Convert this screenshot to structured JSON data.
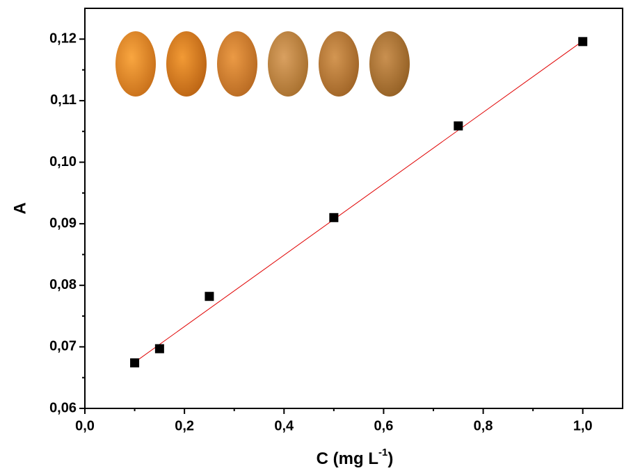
{
  "chart_data": {
    "type": "scatter",
    "xlabel": {
      "text": "C (mg L",
      "superscript": "-1",
      "suffix": ")"
    },
    "ylabel": "A",
    "x": [
      0.1,
      0.15,
      0.25,
      0.5,
      0.75,
      1.0
    ],
    "values": [
      0.0674,
      0.0697,
      0.0782,
      0.091,
      0.1059,
      0.1196
    ],
    "color": "#000000",
    "fit": {
      "x": [
        0.1,
        1.0
      ],
      "values": [
        0.0675,
        0.1197
      ],
      "color": "#e00000"
    },
    "xlim": [
      0,
      1.08
    ],
    "ylim": [
      0.06,
      0.125
    ],
    "xticks": [
      {
        "value": 0,
        "label": "0,0"
      },
      {
        "value": 0.2,
        "label": "0,2"
      },
      {
        "value": 0.4,
        "label": "0,4"
      },
      {
        "value": 0.6,
        "label": "0,6"
      },
      {
        "value": 0.8,
        "label": "0,8"
      },
      {
        "value": 1.0,
        "label": "1,0"
      }
    ],
    "xminorticks": [
      0.1,
      0.3,
      0.5,
      0.7,
      0.9
    ],
    "yticks": [
      {
        "value": 0.06,
        "label": "0,06"
      },
      {
        "value": 0.07,
        "label": "0,07"
      },
      {
        "value": 0.08,
        "label": "0,08"
      },
      {
        "value": 0.09,
        "label": "0,09"
      },
      {
        "value": 0.1,
        "label": "0,10"
      },
      {
        "value": 0.11,
        "label": "0,11"
      },
      {
        "value": 0.12,
        "label": "0,12"
      }
    ],
    "yminorticks": [
      0.065,
      0.075,
      0.085,
      0.095,
      0.105,
      0.115
    ],
    "grid": false
  }
}
